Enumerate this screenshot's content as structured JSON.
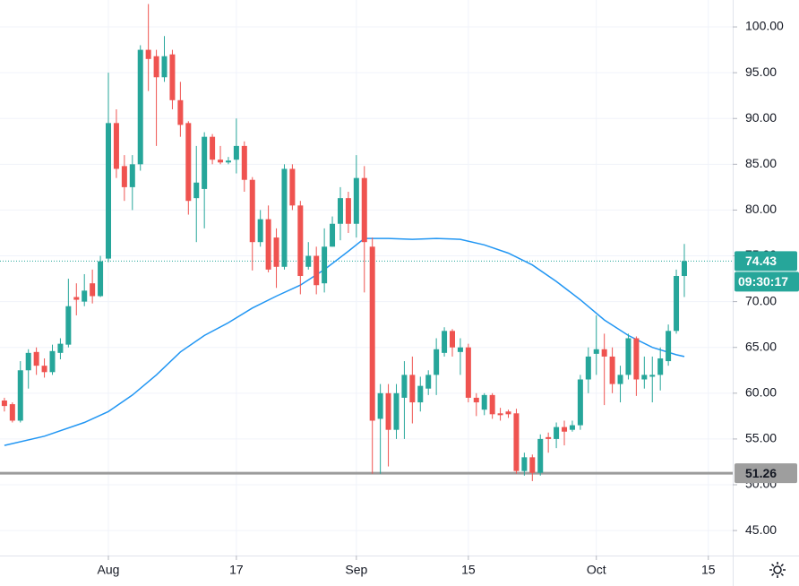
{
  "chart_data": {
    "type": "candlestick",
    "x": [
      -13,
      -12,
      -11,
      -10,
      -9,
      -8,
      -7,
      -6,
      -5,
      -4,
      -3,
      -2,
      -1,
      0,
      1,
      2,
      3,
      4,
      5,
      6,
      7,
      8,
      9,
      10,
      11,
      12,
      13,
      14,
      15,
      16,
      17,
      18,
      19,
      20,
      21,
      22,
      23,
      24,
      25,
      26,
      27,
      28,
      29,
      30,
      31,
      32,
      33,
      34,
      35,
      36,
      37,
      38,
      39,
      40,
      41,
      42,
      43,
      44,
      45,
      46,
      47,
      48,
      49,
      50,
      51,
      52,
      53,
      54,
      55,
      56,
      57,
      58,
      59,
      60,
      61,
      62,
      63,
      64,
      65,
      66,
      67,
      68,
      69,
      70,
      71,
      72
    ],
    "open": [
      59.2,
      58.8,
      57,
      62.5,
      64.5,
      63,
      62.3,
      64.4,
      65.3,
      70.5,
      70,
      72,
      70.6,
      74.7,
      89.5,
      84.8,
      82.5,
      85,
      97.5,
      96.8,
      94.5,
      97,
      92,
      89.5,
      81.3,
      82.3,
      88,
      85.5,
      85.2,
      85.5,
      87,
      83.3,
      76.5,
      79,
      77,
      73.8,
      84.5,
      80.5,
      73.8,
      75,
      72,
      76,
      78.5,
      81.3,
      78.5,
      83.5,
      76,
      57.2,
      60,
      56,
      59.5,
      62,
      59,
      60.5,
      62,
      64.4,
      66.8,
      64.5,
      65,
      59.5,
      58.2,
      59.8,
      57.8,
      58,
      57.8,
      51.5,
      53,
      51.3,
      55.2,
      55,
      56.3,
      56,
      56.5,
      61.5,
      64.3,
      64.8,
      64,
      61,
      62,
      66,
      61.5,
      61.8,
      62,
      63.5,
      66.8,
      72.8
    ],
    "high": [
      59.5,
      59,
      63.5,
      64.8,
      65,
      63.8,
      65.3,
      66,
      72.5,
      72,
      73,
      73.5,
      75,
      95,
      91,
      86,
      86,
      98,
      102.5,
      97.5,
      99,
      97.5,
      94,
      89.7,
      87,
      88.5,
      88.3,
      87,
      85.8,
      90,
      87.5,
      83.6,
      80,
      80.5,
      78,
      85,
      85,
      81,
      76.5,
      76,
      78,
      79.3,
      82.5,
      82,
      86,
      84.8,
      77,
      61,
      61,
      61,
      63.5,
      64,
      61.8,
      62.5,
      66,
      67.2,
      67,
      66,
      65.4,
      60,
      60,
      60,
      58.4,
      58.2,
      58.3,
      53.5,
      53.3,
      55.5,
      55.7,
      56.8,
      57,
      57,
      62,
      65,
      68.5,
      66.5,
      65,
      63,
      66.5,
      66.2,
      64,
      64,
      65,
      67.5,
      73.5,
      76.3
    ],
    "low": [
      58,
      56.8,
      56.8,
      60.5,
      62,
      61.7,
      62,
      63.7,
      65,
      68.5,
      69.5,
      69.8,
      70.5,
      74.3,
      83.5,
      81,
      80,
      84.3,
      93,
      87,
      94,
      91,
      88,
      79.5,
      76.5,
      78,
      85,
      85,
      85,
      84,
      82,
      73.4,
      76,
      73.2,
      71.5,
      73.5,
      80,
      70.8,
      73.5,
      70.8,
      71,
      76,
      76.7,
      77.5,
      77,
      71,
      51.2,
      51.2,
      52,
      55,
      55,
      56.7,
      58,
      59.8,
      59.8,
      64,
      64,
      62,
      59,
      57.5,
      57.6,
      57.2,
      57,
      57.3,
      51.2,
      51,
      50.4,
      51,
      53.5,
      54,
      54.3,
      55.8,
      56,
      60,
      62,
      58.7,
      60,
      59,
      61.5,
      59.7,
      60.5,
      59,
      60.3,
      63,
      66.5,
      70.5
    ],
    "close": [
      58.6,
      57,
      62.5,
      64.4,
      63,
      62.3,
      64.6,
      65.4,
      69.5,
      70.2,
      71.2,
      70.6,
      74.4,
      89.5,
      84.5,
      82.5,
      85,
      97.5,
      96.5,
      94.5,
      96.8,
      92,
      89.3,
      81,
      83,
      88,
      85.5,
      85.2,
      85.4,
      87,
      83.3,
      76.5,
      79,
      73.5,
      73.8,
      84.5,
      80.5,
      72.8,
      75,
      71.8,
      76,
      78.5,
      81.3,
      78.5,
      83.5,
      76.5,
      57,
      60,
      56,
      60,
      62,
      59,
      60.8,
      62,
      64.8,
      66.8,
      65,
      65,
      59.5,
      59,
      59.8,
      57.7,
      57.6,
      57.7,
      51.5,
      53,
      51.3,
      55,
      55,
      56.3,
      55.8,
      56.5,
      61.5,
      64,
      64.8,
      64,
      61,
      62,
      66,
      61.5,
      62,
      62,
      63.8,
      66.8,
      72.8,
      74.43
    ],
    "up_color": "#26a69a",
    "down_color": "#ef5350",
    "overlay": {
      "color": "#2196f3",
      "x": [
        -13,
        -8,
        -3,
        0,
        3,
        6,
        9,
        12,
        15,
        18,
        21,
        24,
        27,
        30,
        32,
        35,
        38,
        41,
        44,
        47,
        50,
        53,
        56,
        59,
        62,
        65,
        68,
        71,
        72
      ],
      "values": [
        54.3,
        55.3,
        56.8,
        58,
        59.8,
        62,
        64.5,
        66.3,
        67.7,
        69.3,
        70.6,
        71.8,
        73.5,
        75.5,
        76.9,
        76.9,
        76.8,
        76.9,
        76.8,
        76.2,
        75.3,
        74,
        72.2,
        70.2,
        68,
        66.3,
        65,
        64.2,
        64
      ]
    },
    "last_price": 74.43,
    "countdown": "09:30:17",
    "level": 51.26,
    "xlim": [
      -13.55,
      78.05
    ],
    "xticks": [
      {
        "value": 0,
        "label": "Aug"
      },
      {
        "value": 16,
        "label": "17"
      },
      {
        "value": 31,
        "label": "Sep"
      },
      {
        "value": 45,
        "label": "15"
      },
      {
        "value": 61,
        "label": "Oct"
      },
      {
        "value": 75,
        "label": "15"
      }
    ],
    "ylim": [
      42.27,
      102.94
    ],
    "yticks": [
      {
        "value": 45,
        "label": "45.00"
      },
      {
        "value": 50,
        "label": "50.00"
      },
      {
        "value": 55,
        "label": "55.00"
      },
      {
        "value": 60,
        "label": "60.00"
      },
      {
        "value": 65,
        "label": "65.00"
      },
      {
        "value": 70,
        "label": "70.00"
      },
      {
        "value": 75,
        "label": "75.00"
      },
      {
        "value": 80,
        "label": "80.00"
      },
      {
        "value": 85,
        "label": "85.00"
      },
      {
        "value": 90,
        "label": "90.00"
      },
      {
        "value": 95,
        "label": "95.00"
      },
      {
        "value": 100,
        "label": "100.00"
      }
    ],
    "grid": true
  }
}
